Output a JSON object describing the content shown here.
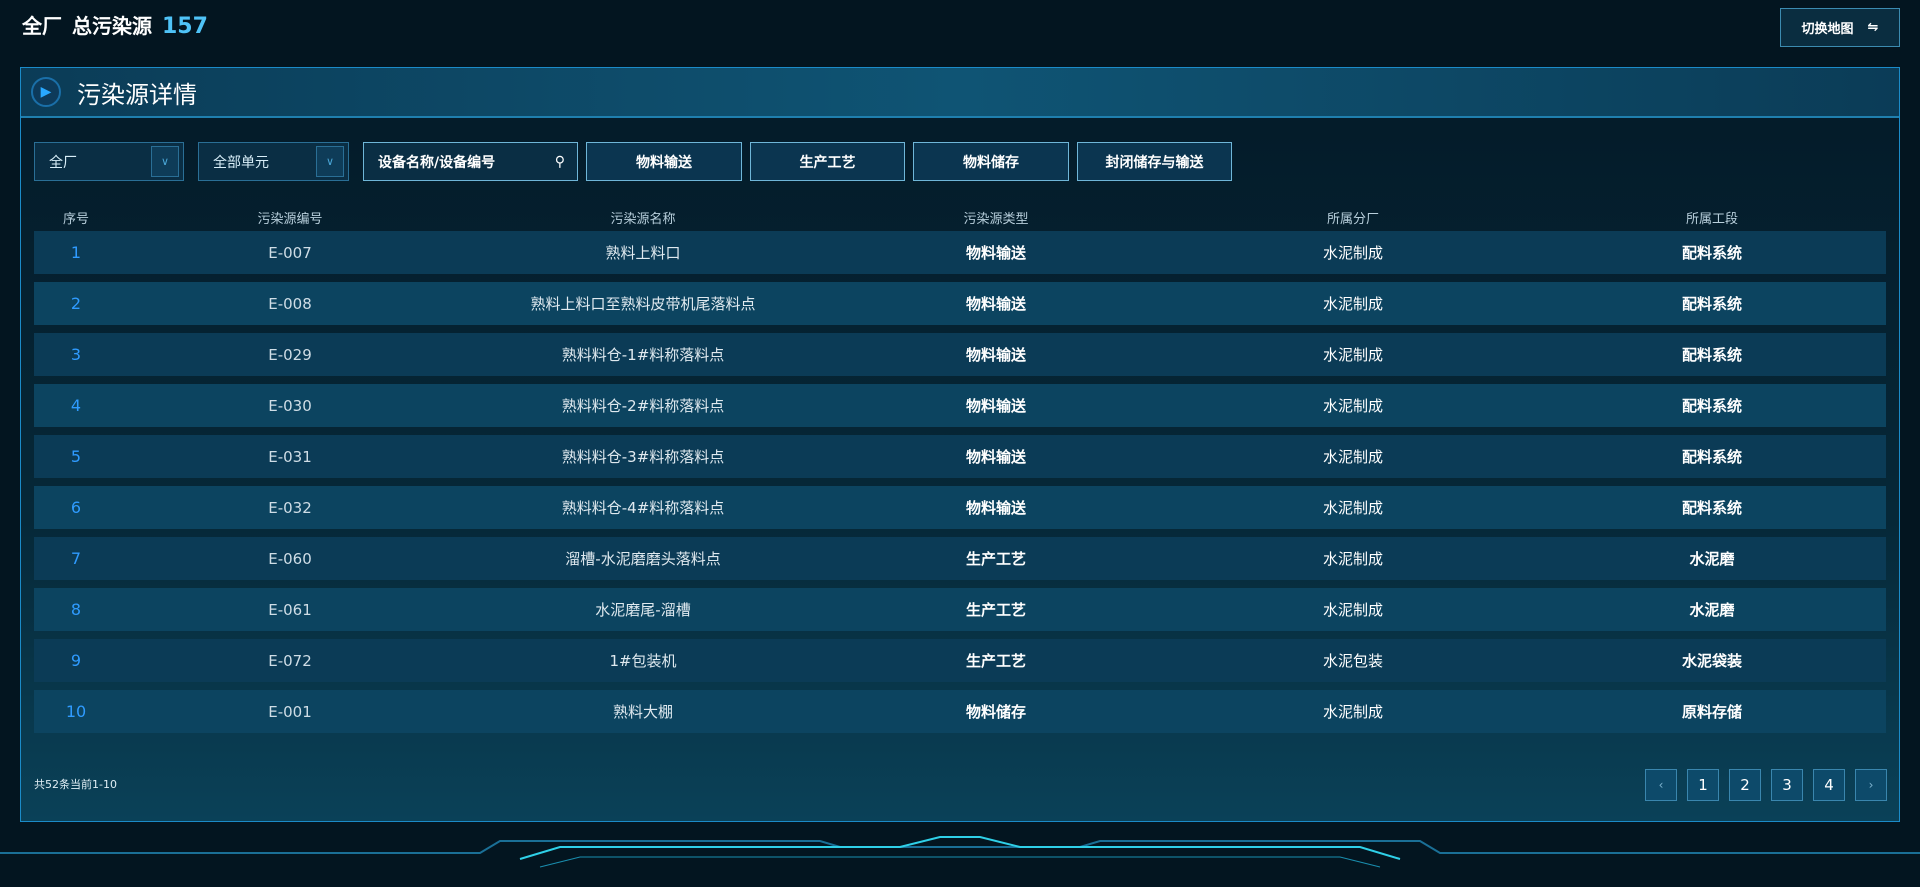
{
  "header": {
    "scope": "全厂",
    "label": "总污染源",
    "count": "157",
    "switch_label": "切换地图",
    "switch_icon": "swap-arrows-icon"
  },
  "panel": {
    "title": "污染源详情",
    "icon": "play-icon"
  },
  "filters": {
    "plant": "全厂",
    "unit": "全部单元",
    "search_placeholder": "设备名称/设备编号",
    "type_buttons": [
      "物料输送",
      "生产工艺",
      "物料储存",
      "封闭储存与输送"
    ]
  },
  "table": {
    "columns": [
      "序号",
      "污染源编号",
      "污染源名称",
      "污染源类型",
      "所属分厂",
      "所属工段"
    ],
    "rows": [
      [
        "1",
        "E-007",
        "熟料上料口",
        "物料输送",
        "水泥制成",
        "配料系统"
      ],
      [
        "2",
        "E-008",
        "熟料上料口至熟料皮带机尾落料点",
        "物料输送",
        "水泥制成",
        "配料系统"
      ],
      [
        "3",
        "E-029",
        "熟料料仓-1#料称落料点",
        "物料输送",
        "水泥制成",
        "配料系统"
      ],
      [
        "4",
        "E-030",
        "熟料料仓-2#料称落料点",
        "物料输送",
        "水泥制成",
        "配料系统"
      ],
      [
        "5",
        "E-031",
        "熟料料仓-3#料称落料点",
        "物料输送",
        "水泥制成",
        "配料系统"
      ],
      [
        "6",
        "E-032",
        "熟料料仓-4#料称落料点",
        "物料输送",
        "水泥制成",
        "配料系统"
      ],
      [
        "7",
        "E-060",
        "溜槽-水泥磨磨头落料点",
        "生产工艺",
        "水泥制成",
        "水泥磨"
      ],
      [
        "8",
        "E-061",
        "水泥磨尾-溜槽",
        "生产工艺",
        "水泥制成",
        "水泥磨"
      ],
      [
        "9",
        "E-072",
        "1#包装机",
        "生产工艺",
        "水泥包装",
        "水泥袋装"
      ],
      [
        "10",
        "E-001",
        "熟料大棚",
        "物料储存",
        "水泥制成",
        "原料存储"
      ]
    ]
  },
  "pagination": {
    "summary": "共52条当前1-10",
    "pages": [
      "1",
      "2",
      "3",
      "4"
    ],
    "prev": "‹",
    "next": "›"
  }
}
